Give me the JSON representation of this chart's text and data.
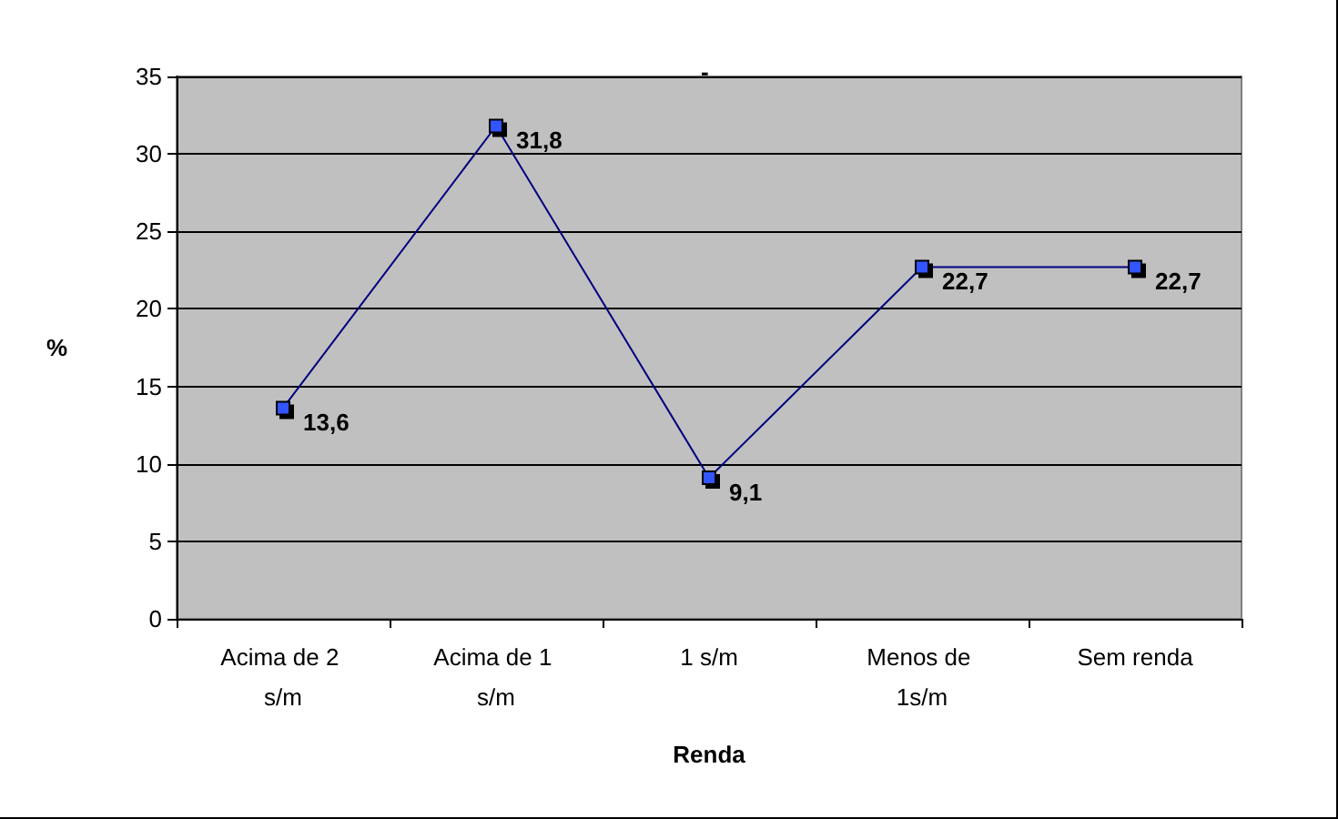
{
  "chart_data": {
    "type": "line",
    "title": "-",
    "xlabel": "Renda",
    "ylabel": "%",
    "categories": [
      "Acima de 2 s/m",
      "Acima de 1 s/m",
      "1 s/m",
      "Menos de 1s/m",
      "Sem renda"
    ],
    "series": [
      {
        "color": "#000080",
        "values": [
          13.6,
          31.8,
          9.1,
          22.7,
          22.7
        ],
        "value_labels": [
          "13,6",
          "31,8",
          "9,1",
          "22,7",
          "22,7"
        ]
      }
    ],
    "ylim": [
      0,
      35
    ],
    "yticks": [
      0,
      5,
      10,
      15,
      20,
      25,
      30,
      35
    ],
    "grid": "y",
    "marker": "square",
    "line_style": "solid"
  }
}
